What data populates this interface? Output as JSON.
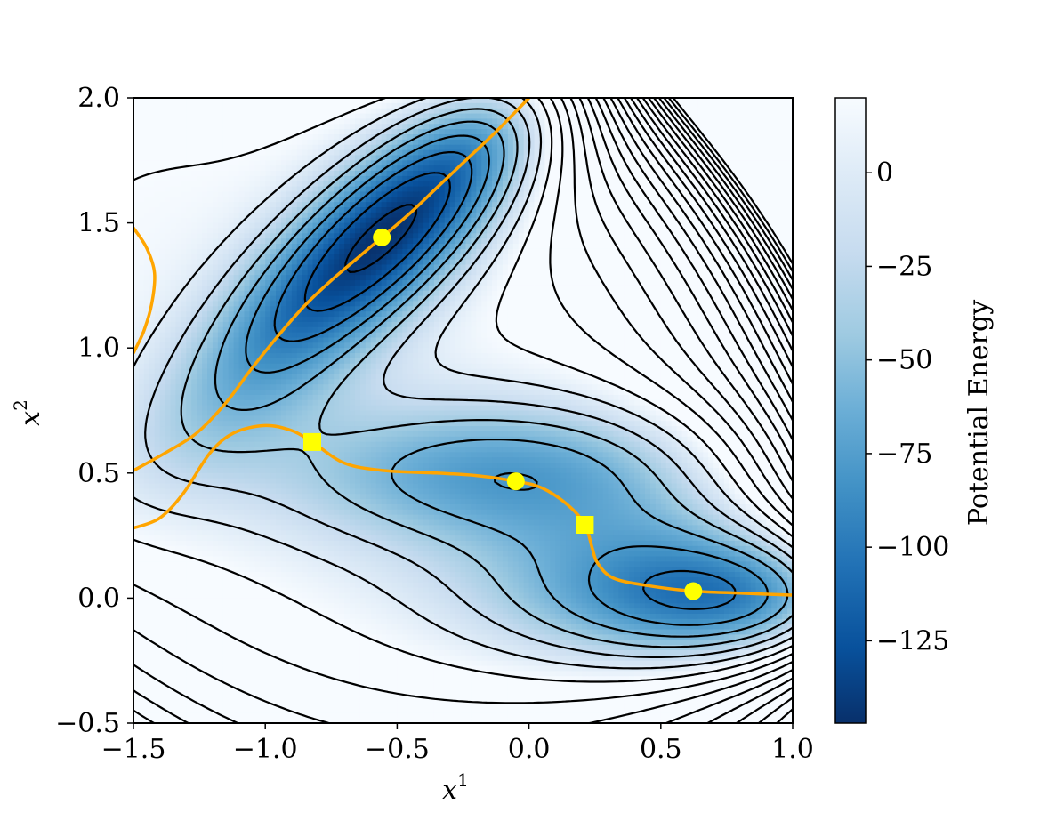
{
  "chart_data": {
    "type": "heatmap",
    "title": "",
    "xlabel": "x",
    "xlabel_sup": "1",
    "ylabel": "x",
    "ylabel_sup": "2",
    "xlim": [
      -1.5,
      1.0
    ],
    "ylim": [
      -0.5,
      2.0
    ],
    "xticks": [
      -1.5,
      -1.0,
      -0.5,
      0.0,
      0.5,
      1.0
    ],
    "xtick_labels": [
      "−1.5",
      "−1.0",
      "−0.5",
      "0.0",
      "0.5",
      "1.0"
    ],
    "yticks": [
      -0.5,
      0.0,
      0.5,
      1.0,
      1.5,
      2.0
    ],
    "ytick_labels": [
      "−0.5",
      "0.0",
      "0.5",
      "1.0",
      "1.5",
      "2.0"
    ],
    "colormap": "Blues_r",
    "colorbar": {
      "label": "Potential Energy",
      "range": [
        -147,
        20
      ],
      "ticks": [
        0,
        -25,
        -50,
        -75,
        -100,
        -125
      ],
      "tick_labels": [
        "0",
        "−25",
        "−50",
        "−75",
        "−100",
        "−125"
      ]
    },
    "contour_color": "#000000",
    "minima": {
      "marker": "circle",
      "color": "#ffff00",
      "points": [
        [
          -0.558,
          1.442
        ],
        [
          -0.05,
          0.467
        ],
        [
          0.623,
          0.028
        ]
      ]
    },
    "saddles": {
      "marker": "square",
      "color": "#ffff00",
      "points": [
        [
          -0.822,
          0.624
        ],
        [
          0.212,
          0.293
        ]
      ]
    },
    "paths": {
      "color": "#ffa500",
      "lines": [
        [
          [
            -1.5,
            0.51
          ],
          [
            -1.38,
            0.58
          ],
          [
            -1.26,
            0.66
          ],
          [
            -1.15,
            0.78
          ],
          [
            -1.05,
            0.92
          ],
          [
            -0.95,
            1.05
          ],
          [
            -0.85,
            1.17
          ],
          [
            -0.75,
            1.27
          ],
          [
            -0.65,
            1.36
          ],
          [
            -0.558,
            1.442
          ],
          [
            -0.45,
            1.54
          ],
          [
            -0.35,
            1.64
          ],
          [
            -0.24,
            1.75
          ],
          [
            -0.12,
            1.87
          ],
          [
            0.0,
            2.0
          ]
        ],
        [
          [
            -1.5,
            0.28
          ],
          [
            -1.4,
            0.32
          ],
          [
            -1.31,
            0.42
          ],
          [
            -1.21,
            0.58
          ],
          [
            -1.12,
            0.66
          ],
          [
            -1.0,
            0.69
          ],
          [
            -0.9,
            0.67
          ],
          [
            -0.822,
            0.624
          ],
          [
            -0.7,
            0.54
          ],
          [
            -0.55,
            0.51
          ],
          [
            -0.35,
            0.5
          ],
          [
            -0.2,
            0.49
          ],
          [
            -0.05,
            0.467
          ],
          [
            0.05,
            0.44
          ],
          [
            0.15,
            0.37
          ],
          [
            0.212,
            0.293
          ],
          [
            0.24,
            0.2
          ],
          [
            0.26,
            0.14
          ],
          [
            0.32,
            0.08
          ],
          [
            0.45,
            0.05
          ],
          [
            0.623,
            0.028
          ],
          [
            0.8,
            0.02
          ],
          [
            1.0,
            0.012
          ]
        ],
        [
          [
            -1.5,
            1.48
          ],
          [
            -1.45,
            1.4
          ],
          [
            -1.42,
            1.3
          ],
          [
            -1.43,
            1.18
          ],
          [
            -1.46,
            1.07
          ],
          [
            -1.5,
            0.98
          ]
        ]
      ]
    }
  }
}
